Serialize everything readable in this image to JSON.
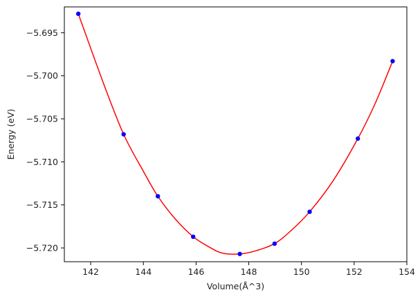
{
  "chart_data": {
    "type": "scatter",
    "title": "",
    "xlabel": "Volume(Å^3)",
    "ylabel": "Energy (eV)",
    "xlim": [
      141.0,
      154.0
    ],
    "ylim": [
      -5.7216,
      -5.692
    ],
    "xticks": [
      142,
      144,
      146,
      148,
      150,
      152,
      154
    ],
    "yticks": [
      -5.695,
      -5.7,
      -5.705,
      -5.71,
      -5.715,
      -5.72
    ],
    "xtick_labels": [
      "142",
      "144",
      "146",
      "148",
      "150",
      "152",
      "154"
    ],
    "ytick_labels": [
      "−5.695",
      "−5.700",
      "−5.705",
      "−5.710",
      "−5.715",
      "−5.720"
    ],
    "grid": false,
    "legend": "none",
    "series": [
      {
        "kind": "points",
        "color": "#0000ff",
        "x": [
          141.53,
          143.25,
          144.55,
          145.89,
          147.66,
          148.98,
          150.31,
          152.14,
          153.46
        ],
        "y": [
          -5.6928,
          -5.7068,
          -5.714,
          -5.7187,
          -5.7207,
          -5.7195,
          -5.7158,
          -5.7073,
          -5.6983
        ]
      },
      {
        "kind": "fit-curve",
        "color": "#ff0000",
        "x": [
          141.53,
          142.5,
          143.25,
          144.0,
          144.55,
          145.2,
          145.89,
          146.5,
          147.0,
          147.66,
          148.3,
          148.98,
          149.6,
          150.31,
          151.2,
          152.14,
          152.8,
          153.46
        ],
        "y": [
          -5.6928,
          -5.701,
          -5.7068,
          -5.7111,
          -5.714,
          -5.7166,
          -5.7187,
          -5.7199,
          -5.7206,
          -5.7207,
          -5.7203,
          -5.7195,
          -5.718,
          -5.7158,
          -5.7122,
          -5.7073,
          -5.7032,
          -5.6983
        ]
      }
    ]
  }
}
